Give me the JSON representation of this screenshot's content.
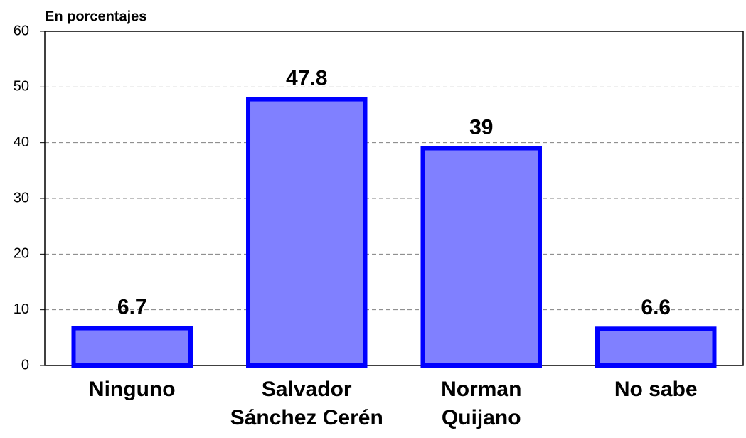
{
  "chart_data": {
    "type": "bar",
    "title": "En porcentajes",
    "categories": [
      "Ninguno",
      "Salvador\nSánchez Cerén",
      "Norman\nQuijano",
      "No sabe"
    ],
    "values": [
      6.7,
      47.8,
      39,
      6.6
    ],
    "color": "#8080ff",
    "edge_color": "#0000ff",
    "ylim": [
      0,
      60
    ],
    "yticks": [
      0,
      10,
      20,
      30,
      40,
      50,
      60
    ],
    "grid": true
  }
}
